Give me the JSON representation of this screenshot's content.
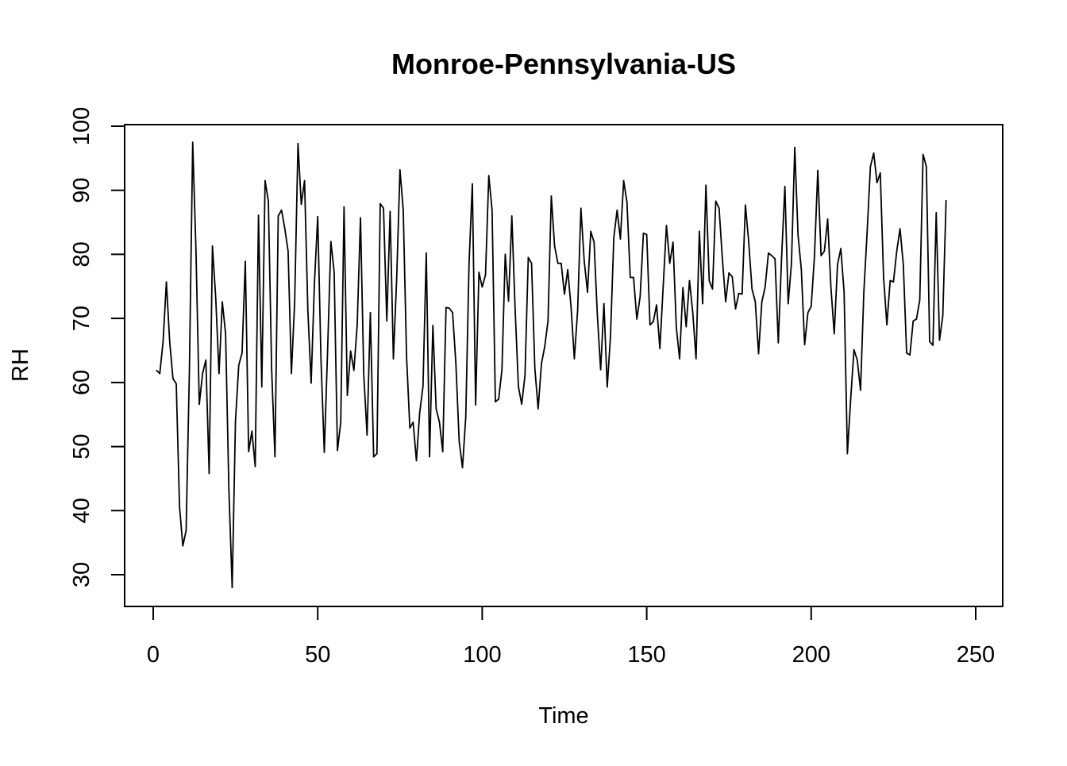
{
  "chart_data": {
    "type": "line",
    "title": "Monroe-Pennsylvania-US",
    "xlabel": "Time",
    "ylabel": "RH",
    "xlim": [
      0,
      250
    ],
    "ylim": [
      30,
      100
    ],
    "x_ticks": [
      "0",
      "50",
      "100",
      "150",
      "200",
      "250"
    ],
    "y_ticks": [
      "30",
      "40",
      "50",
      "60",
      "70",
      "80",
      "90",
      "100"
    ],
    "grid": false,
    "line_color": "#000000",
    "series": [
      {
        "values": [
          61.9,
          61.4,
          66.4,
          75.7,
          66.4,
          60.6,
          59.8,
          40.6,
          34.5,
          36.9,
          61.9,
          97.5,
          80.5,
          56.6,
          61.4,
          63.5,
          45.8,
          81.3,
          73.2,
          61.4,
          72.6,
          67.6,
          43.3,
          28.0,
          54.0,
          62.7,
          64.6,
          78.9,
          49.2,
          52.4,
          46.9,
          86.1,
          59.3,
          91.5,
          88.3,
          62.0,
          48.4,
          86.0,
          86.9,
          84.0,
          80.5,
          61.4,
          72.6,
          97.3,
          87.8,
          91.5,
          71.3,
          59.9,
          75.5,
          85.9,
          63.5,
          49.1,
          64.9,
          82.0,
          77.2,
          49.4,
          53.8,
          87.4,
          58.0,
          64.9,
          61.9,
          69.0,
          85.7,
          61.2,
          51.8,
          70.9,
          48.4,
          48.9,
          87.9,
          87.2,
          69.6,
          86.7,
          63.7,
          76.2,
          93.2,
          86.9,
          64.1,
          52.9,
          53.8,
          47.8,
          55.3,
          59.4,
          80.2,
          48.4,
          68.9,
          55.9,
          53.8,
          49.2,
          71.7,
          71.6,
          70.9,
          62.9,
          50.8,
          46.7,
          54.6,
          78.6,
          91.0,
          56.5,
          77.2,
          74.9,
          76.8,
          92.3,
          86.9,
          57.0,
          57.4,
          62.0,
          80.0,
          72.7,
          86.0,
          71.5,
          59.4,
          56.6,
          61.1,
          79.5,
          78.6,
          62.2,
          55.9,
          62.9,
          65.6,
          69.6,
          89.1,
          81.3,
          78.6,
          78.6,
          73.8,
          77.6,
          71.8,
          63.7,
          71.2,
          87.2,
          79.0,
          74.1,
          83.6,
          81.9,
          70.5,
          62.0,
          72.3,
          59.3,
          67.3,
          82.6,
          86.9,
          82.4,
          91.5,
          88.1,
          76.4,
          76.4,
          69.9,
          73.4,
          83.3,
          83.1,
          69.0,
          69.5,
          72.1,
          65.3,
          74.9,
          84.5,
          78.6,
          81.9,
          68.6,
          63.7,
          74.8,
          68.7,
          75.9,
          70.9,
          63.7,
          83.6,
          72.3,
          90.8,
          75.9,
          74.6,
          88.3,
          87.2,
          79.3,
          72.6,
          77.1,
          76.5,
          71.5,
          73.9,
          73.8,
          87.7,
          82.0,
          74.6,
          72.6,
          64.5,
          72.6,
          74.9,
          80.2,
          79.8,
          79.3,
          66.2,
          79.5,
          90.6,
          72.3,
          78.6,
          96.7,
          83.0,
          77.6,
          65.9,
          70.9,
          71.9,
          79.8,
          93.1,
          79.8,
          80.5,
          85.5,
          74.8,
          67.6,
          78.4,
          80.9,
          74.1,
          48.9,
          57.4,
          65.1,
          63.5,
          58.8,
          74.1,
          83.5,
          93.7,
          95.8,
          91.2,
          92.7,
          76.4,
          69.0,
          75.9,
          75.7,
          80.5,
          84.0,
          78.4,
          64.6,
          64.3,
          69.6,
          69.9,
          72.9,
          95.6,
          93.7,
          66.4,
          65.8,
          86.5,
          66.6,
          70.4,
          88.4
        ]
      }
    ]
  }
}
